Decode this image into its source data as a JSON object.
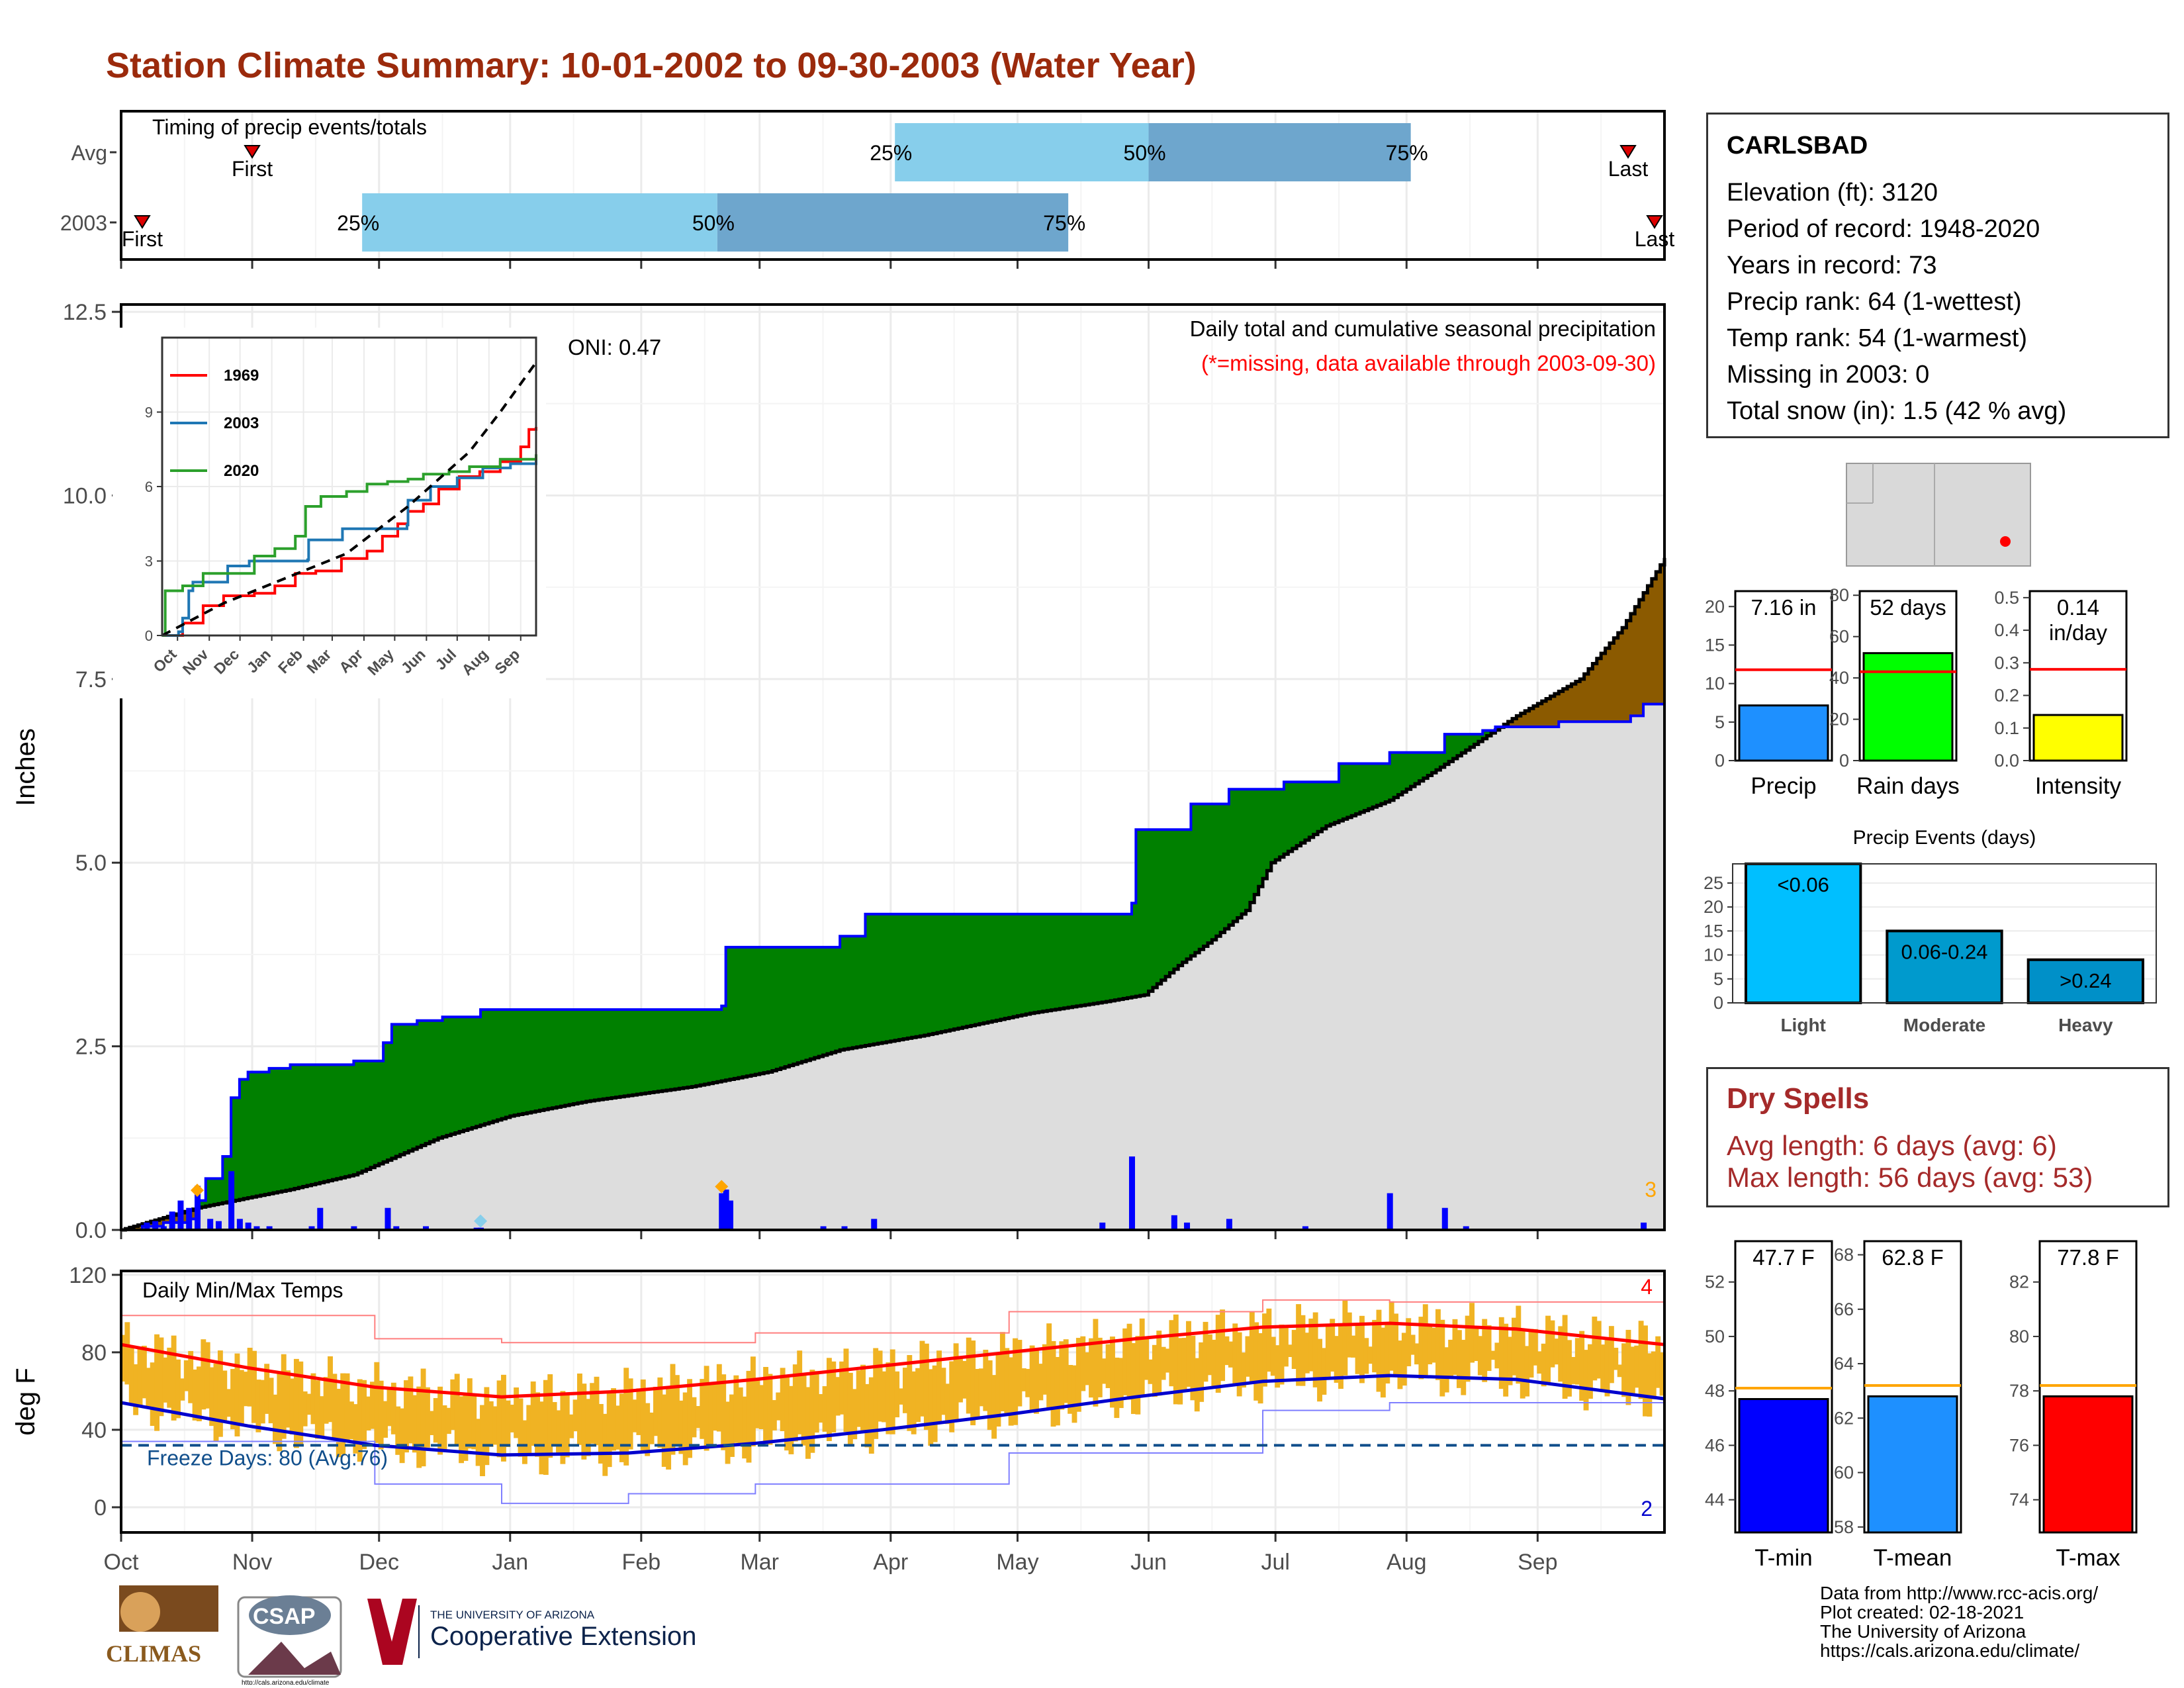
{
  "title": "Station Climate Summary: 10-01-2002 to 09-30-2003 (Water Year)",
  "colors": {
    "title": "#9b2a0c",
    "q_light": "#87ceeb",
    "q_dark": "#6ea6cd",
    "deficit_fill": "#8b5a00",
    "surplus_fill": "#008000",
    "avg_fill": "#dddddd",
    "current_line": "#0000ff",
    "bar_blue": "#0000ff",
    "temp_bar": "#f0b323",
    "tmax_avg": "#ff0000",
    "tmin_avg": "#0000cd",
    "dry_text": "#a52a2a"
  },
  "station": {
    "name": "CARLSBAD",
    "lines": [
      "Elevation (ft): 3120",
      "Period of record: 1948-2020",
      "Years in record: 73",
      "Precip rank: 64 (1-wettest)",
      "Temp rank: 54 (1-warmest)",
      "Missing in 2003: 0",
      "Total snow (in): 1.5 (42 % avg)"
    ]
  },
  "dry_spells": {
    "title": "Dry Spells",
    "avg": "Avg length: 6 days (avg: 6)",
    "max": "Max length: 56 days (avg: 53)"
  },
  "credits": [
    "Data from http://www.rcc-acis.org/",
    "Plot created: 02-18-2021",
    "The University of Arizona",
    "https://cals.arizona.edu/climate/"
  ],
  "logos": {
    "climas": "CLIMAS",
    "csap": "CSAP",
    "csap_url": "http://cals.arizona.edu/climate",
    "ua_line1": "THE UNIVERSITY OF ARIZONA",
    "ua_line2": "Cooperative Extension"
  },
  "chart_data": [
    {
      "id": "timing",
      "type": "bar",
      "title": "Timing of precip events/totals",
      "rows": [
        {
          "label": "Avg",
          "first": "Nov",
          "first_label": "First",
          "q25": "Apr 2",
          "q50": "Jun 1",
          "q75": "Aug 2",
          "last_label": "Last"
        },
        {
          "label": "2003",
          "first": "Oct 6",
          "first_label": "First",
          "q25": "Nov 27",
          "q50": "Feb 19",
          "q75": "May 13",
          "last_label": "Last"
        }
      ],
      "quantile_labels": [
        "25%",
        "50%",
        "75%"
      ],
      "x_day_range": [
        0,
        365
      ]
    },
    {
      "id": "precip",
      "type": "area",
      "title": "Daily total and cumulative seasonal precipitation",
      "subtitle": "(*=missing, data available through 2003-09-30)",
      "ylabel": "Inches",
      "ylim": [
        0,
        12.6
      ],
      "yticks": [
        "0.0",
        "2.5",
        "5.0",
        "7.5",
        "10.0",
        "12.5"
      ],
      "oni": "ONI: 0.47",
      "corner_label": "3",
      "x_months": [
        "Oct",
        "Nov",
        "Dec",
        "Jan",
        "Feb",
        "Mar",
        "Apr",
        "May",
        "Jun",
        "Jul",
        "Aug",
        "Sep"
      ],
      "avg_cumulative": [
        [
          0,
          0
        ],
        [
          18,
          0.3
        ],
        [
          25,
          0.38
        ],
        [
          40,
          0.55
        ],
        [
          55,
          0.75
        ],
        [
          75,
          1.25
        ],
        [
          92,
          1.55
        ],
        [
          110,
          1.75
        ],
        [
          135,
          1.95
        ],
        [
          153,
          2.15
        ],
        [
          170,
          2.45
        ],
        [
          190,
          2.65
        ],
        [
          215,
          2.95
        ],
        [
          232,
          3.1
        ],
        [
          242,
          3.2
        ],
        [
          250,
          3.6
        ],
        [
          258,
          3.95
        ],
        [
          266,
          4.35
        ],
        [
          272,
          5.0
        ],
        [
          285,
          5.5
        ],
        [
          300,
          5.85
        ],
        [
          312,
          6.3
        ],
        [
          330,
          7.0
        ],
        [
          345,
          7.5
        ],
        [
          355,
          8.2
        ],
        [
          365,
          9.15
        ]
      ],
      "series_2003": [
        [
          0,
          0
        ],
        [
          5,
          0.05
        ],
        [
          10,
          0.1
        ],
        [
          16,
          0.15
        ],
        [
          18,
          0.4
        ],
        [
          20,
          0.7
        ],
        [
          24,
          1.0
        ],
        [
          26,
          1.8
        ],
        [
          28,
          2.05
        ],
        [
          30,
          2.15
        ],
        [
          35,
          2.2
        ],
        [
          40,
          2.25
        ],
        [
          55,
          2.3
        ],
        [
          62,
          2.55
        ],
        [
          64,
          2.8
        ],
        [
          70,
          2.85
        ],
        [
          76,
          2.9
        ],
        [
          85,
          3.0
        ],
        [
          142,
          3.05
        ],
        [
          143,
          3.85
        ],
        [
          170,
          4.0
        ],
        [
          176,
          4.3
        ],
        [
          239,
          4.45
        ],
        [
          240,
          5.45
        ],
        [
          253,
          5.8
        ],
        [
          262,
          6.0
        ],
        [
          275,
          6.1
        ],
        [
          288,
          6.35
        ],
        [
          300,
          6.5
        ],
        [
          313,
          6.75
        ],
        [
          322,
          6.8
        ],
        [
          325,
          6.85
        ],
        [
          340,
          6.92
        ],
        [
          357,
          7.0
        ],
        [
          360,
          7.16
        ],
        [
          365,
          7.16
        ]
      ],
      "daily_bars": [
        [
          6,
          0.1
        ],
        [
          8,
          0.12
        ],
        [
          10,
          0.05
        ],
        [
          12,
          0.25
        ],
        [
          14,
          0.4
        ],
        [
          16,
          0.3
        ],
        [
          18,
          0.6
        ],
        [
          21,
          0.15
        ],
        [
          23,
          0.12
        ],
        [
          26,
          0.8
        ],
        [
          28,
          0.15
        ],
        [
          30,
          0.1
        ],
        [
          32,
          0.05
        ],
        [
          35,
          0.05
        ],
        [
          45,
          0.05
        ],
        [
          47,
          0.3
        ],
        [
          55,
          0.05
        ],
        [
          63,
          0.3
        ],
        [
          65,
          0.05
        ],
        [
          72,
          0.05
        ],
        [
          84,
          0.03
        ],
        [
          85,
          0.03
        ],
        [
          142,
          0.5
        ],
        [
          143,
          0.55
        ],
        [
          144,
          0.4
        ],
        [
          166,
          0.05
        ],
        [
          171,
          0.05
        ],
        [
          178,
          0.15
        ],
        [
          232,
          0.1
        ],
        [
          239,
          1.0
        ],
        [
          249,
          0.2
        ],
        [
          252,
          0.1
        ],
        [
          262,
          0.15
        ],
        [
          280,
          0.05
        ],
        [
          300,
          0.5
        ],
        [
          313,
          0.3
        ],
        [
          318,
          0.05
        ],
        [
          360,
          0.1
        ]
      ],
      "diamonds": [
        [
          18,
          0.45,
          "#ffa500"
        ],
        [
          142,
          0.5,
          "#ffa500"
        ],
        [
          85,
          0.03,
          "#87ceeb"
        ]
      ]
    },
    {
      "id": "inset",
      "type": "line",
      "xticks": [
        "Oct",
        "Nov",
        "Dec",
        "Jan",
        "Feb",
        "Mar",
        "Apr",
        "May",
        "Jun",
        "Jul",
        "Aug",
        "Sep"
      ],
      "yticks": [
        "0",
        "3",
        "6",
        "9"
      ],
      "ylim": [
        0,
        12
      ],
      "series": [
        {
          "name": "1969",
          "color": "#ff0000",
          "points": [
            [
              0,
              0
            ],
            [
              20,
              0.5
            ],
            [
              40,
              1.2
            ],
            [
              60,
              1.6
            ],
            [
              90,
              1.7
            ],
            [
              110,
              2.0
            ],
            [
              130,
              2.5
            ],
            [
              150,
              2.6
            ],
            [
              175,
              3.1
            ],
            [
              200,
              3.4
            ],
            [
              215,
              4.0
            ],
            [
              230,
              4.5
            ],
            [
              240,
              5.0
            ],
            [
              255,
              5.3
            ],
            [
              270,
              5.9
            ],
            [
              290,
              6.4
            ],
            [
              310,
              6.6
            ],
            [
              330,
              7.0
            ],
            [
              350,
              7.6
            ],
            [
              358,
              8.3
            ],
            [
              365,
              8.4
            ]
          ]
        },
        {
          "name": "2003",
          "color": "#1f77b4",
          "points": [
            [
              0,
              0
            ],
            [
              16,
              0.15
            ],
            [
              20,
              0.7
            ],
            [
              26,
              1.8
            ],
            [
              30,
              2.15
            ],
            [
              64,
              2.8
            ],
            [
              85,
              3.0
            ],
            [
              142,
              3.05
            ],
            [
              143,
              3.85
            ],
            [
              176,
              4.3
            ],
            [
              239,
              4.45
            ],
            [
              240,
              5.45
            ],
            [
              262,
              6.0
            ],
            [
              288,
              6.35
            ],
            [
              313,
              6.75
            ],
            [
              340,
              6.92
            ],
            [
              365,
              7.16
            ]
          ]
        },
        {
          "name": "2020",
          "color": "#2ca02c",
          "points": [
            [
              0,
              0
            ],
            [
              3,
              1.8
            ],
            [
              20,
              2.0
            ],
            [
              40,
              2.5
            ],
            [
              90,
              3.2
            ],
            [
              110,
              3.5
            ],
            [
              130,
              4.0
            ],
            [
              140,
              5.2
            ],
            [
              155,
              5.6
            ],
            [
              180,
              5.8
            ],
            [
              200,
              6.1
            ],
            [
              220,
              6.2
            ],
            [
              240,
              6.3
            ],
            [
              255,
              6.5
            ],
            [
              280,
              6.6
            ],
            [
              300,
              6.8
            ],
            [
              330,
              7.1
            ],
            [
              365,
              7.3
            ]
          ]
        },
        {
          "name": "",
          "color": "#000000",
          "dashed": true,
          "points": [
            [
              0,
              0
            ],
            [
              60,
              1.3
            ],
            [
              120,
              2.3
            ],
            [
              180,
              3.3
            ],
            [
              240,
              5.2
            ],
            [
              300,
              7.4
            ],
            [
              330,
              9.0
            ],
            [
              365,
              11.0
            ]
          ]
        }
      ]
    },
    {
      "id": "temps",
      "type": "bar",
      "title": "Daily Min/Max Temps",
      "ylabel": "deg F",
      "ylim": [
        -13,
        122
      ],
      "yticks": [
        "0",
        "40",
        "80",
        "120"
      ],
      "freeze_label": "Freeze Days: 80 (Avg:76)",
      "freeze_line": 32,
      "top_count": "4",
      "bottom_count": "2",
      "x_months": [
        "Oct",
        "Nov",
        "Dec",
        "Jan",
        "Feb",
        "Mar",
        "Apr",
        "May",
        "Jun",
        "Jul",
        "Aug",
        "Sep"
      ],
      "avg_tmax": [
        [
          0,
          84
        ],
        [
          30,
          72
        ],
        [
          60,
          62
        ],
        [
          90,
          57
        ],
        [
          120,
          60
        ],
        [
          150,
          66
        ],
        [
          180,
          73
        ],
        [
          210,
          80
        ],
        [
          240,
          87
        ],
        [
          270,
          93
        ],
        [
          300,
          95
        ],
        [
          330,
          92
        ],
        [
          365,
          84
        ]
      ],
      "avg_tmin": [
        [
          0,
          54
        ],
        [
          30,
          42
        ],
        [
          60,
          32
        ],
        [
          90,
          27
        ],
        [
          120,
          28
        ],
        [
          150,
          33
        ],
        [
          180,
          40
        ],
        [
          210,
          48
        ],
        [
          240,
          57
        ],
        [
          270,
          65
        ],
        [
          300,
          68
        ],
        [
          330,
          66
        ],
        [
          365,
          56
        ]
      ],
      "record_max": [
        [
          0,
          99
        ],
        [
          60,
          87
        ],
        [
          90,
          85
        ],
        [
          150,
          90
        ],
        [
          210,
          101
        ],
        [
          270,
          107
        ],
        [
          300,
          106
        ],
        [
          365,
          100
        ]
      ],
      "record_min": [
        [
          0,
          34
        ],
        [
          60,
          12
        ],
        [
          90,
          2
        ],
        [
          120,
          7
        ],
        [
          150,
          12
        ],
        [
          210,
          28
        ],
        [
          270,
          50
        ],
        [
          300,
          54
        ],
        [
          365,
          36
        ]
      ]
    },
    {
      "id": "precip-bars",
      "type": "bar",
      "categories": [
        "Precip",
        "Rain days",
        "Intensity"
      ],
      "panels": [
        {
          "xlabel": "Precip",
          "value": 7.16,
          "label": "7.16 in",
          "avg": 11.8,
          "ylim": [
            0,
            22
          ],
          "yticks": [
            "0",
            "5",
            "10",
            "15",
            "20"
          ],
          "ytick_values": [
            0,
            5,
            10,
            15,
            20
          ],
          "color": "#1e90ff"
        },
        {
          "xlabel": "Rain days",
          "value": 52,
          "label": "52 days",
          "avg": 43,
          "ylim": [
            0,
            82
          ],
          "yticks": [
            "0",
            "20",
            "40",
            "60",
            "80"
          ],
          "ytick_values": [
            0,
            20,
            40,
            60,
            80
          ],
          "color": "#00ff00"
        },
        {
          "xlabel": "Intensity",
          "value": 0.14,
          "label": "0.14",
          "label2": "in/day",
          "avg": 0.28,
          "ylim": [
            0,
            0.52
          ],
          "yticks": [
            "0.0",
            "0.1",
            "0.2",
            "0.3",
            "0.4",
            "0.5"
          ],
          "ytick_values": [
            0,
            0.1,
            0.2,
            0.3,
            0.4,
            0.5
          ],
          "color": "#ffff00"
        }
      ]
    },
    {
      "id": "precip-events",
      "type": "bar",
      "title": "Precip Events (days)",
      "categories": [
        "Light",
        "Moderate",
        "Heavy"
      ],
      "values": [
        29,
        15,
        9
      ],
      "bar_labels": [
        "<0.06",
        "0.06-0.24",
        ">0.24"
      ],
      "yticks": [
        "0",
        "5",
        "10",
        "15",
        "20",
        "25"
      ],
      "ytick_values": [
        0,
        5,
        10,
        15,
        20,
        25
      ],
      "ylim": [
        0,
        29
      ],
      "colors": [
        "#00bfff",
        "#009acd",
        "#0090c8"
      ]
    },
    {
      "id": "temp-bars",
      "type": "bar",
      "categories": [
        "T-min",
        "T-mean",
        "T-max"
      ],
      "panels": [
        {
          "xlabel": "T-min",
          "value": 47.7,
          "label": "47.7 F",
          "avg": 48.1,
          "ylim": [
            42.8,
            53.5
          ],
          "yticks": [
            "44",
            "46",
            "48",
            "50",
            "52"
          ],
          "ytick_values": [
            44,
            46,
            48,
            50,
            52
          ],
          "color": "#0000ff"
        },
        {
          "xlabel": "T-mean",
          "value": 62.8,
          "label": "62.8 F",
          "avg": 63.2,
          "ylim": [
            57.8,
            68.5
          ],
          "yticks": [
            "58",
            "60",
            "62",
            "64",
            "66",
            "68"
          ],
          "ytick_values": [
            58,
            60,
            62,
            64,
            66,
            68
          ],
          "color": "#1e90ff"
        },
        {
          "xlabel": "T-max",
          "value": 77.8,
          "label": "77.8 F",
          "avg": 78.2,
          "ylim": [
            72.8,
            83.5
          ],
          "yticks": [
            "74",
            "76",
            "78",
            "80",
            "82"
          ],
          "ytick_values": [
            74,
            76,
            78,
            80,
            82
          ],
          "color": "#ff0000"
        }
      ]
    }
  ]
}
